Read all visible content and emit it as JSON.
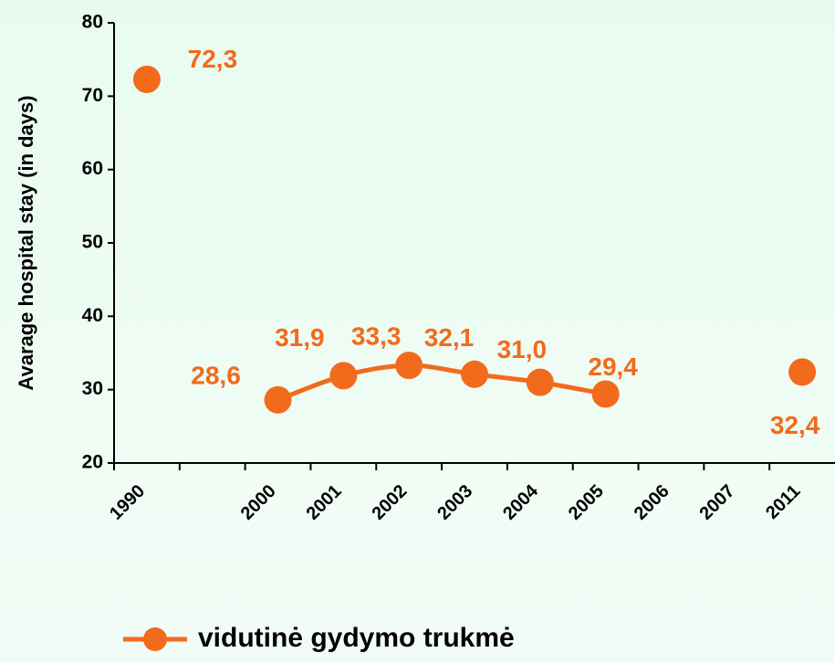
{
  "chart_data": {
    "type": "line",
    "y_label": "Avarage hospital stay (in days)",
    "categories": [
      "1990",
      null,
      "2000",
      "2001",
      "2002",
      "2003",
      "2004",
      "2005",
      "2006",
      "2007",
      "2011"
    ],
    "series": [
      {
        "name": "vidutinė gydymo trukmė",
        "color": "#f26a1b",
        "values": [
          72.3,
          null,
          28.6,
          31.9,
          33.3,
          32.1,
          31.0,
          29.4,
          null,
          null,
          32.4
        ],
        "value_labels": [
          "72,3",
          null,
          "28,6",
          "31,9",
          "33,3",
          "32,1",
          "31,0",
          "29,4",
          null,
          null,
          "32,4"
        ]
      }
    ],
    "ylim": [
      20,
      80
    ],
    "yticks": [
      20,
      30,
      40,
      50,
      60,
      70,
      80
    ],
    "grid": false,
    "legend": "bottom"
  }
}
